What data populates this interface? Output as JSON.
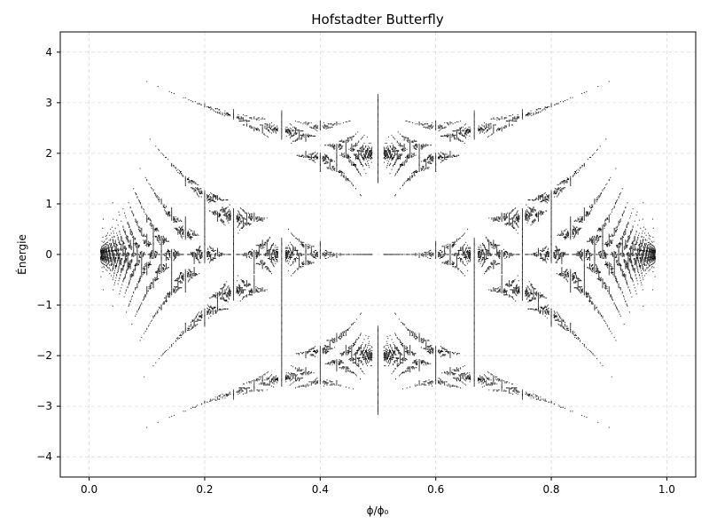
{
  "chart_data": {
    "type": "scatter",
    "title": "Hofstadter Butterfly",
    "xlabel": "ϕ/ϕ₀",
    "ylabel": "Énergie",
    "xlim": [
      -0.05,
      1.05
    ],
    "ylim": [
      -4.4,
      4.4
    ],
    "xticks": [
      0.0,
      0.2,
      0.4,
      0.6,
      0.8,
      1.0
    ],
    "xtick_labels": [
      "0.0",
      "0.2",
      "0.4",
      "0.6",
      "0.8",
      "1.0"
    ],
    "yticks": [
      -4,
      -3,
      -2,
      -1,
      0,
      1,
      2,
      3,
      4
    ],
    "ytick_labels": [
      "−4",
      "−3",
      "−2",
      "−1",
      "0",
      "1",
      "2",
      "3",
      "4"
    ],
    "grid": true,
    "marker_color": "#000000",
    "series": [
      {
        "generator": "harper_equation_rational_flux",
        "flux_denominators": [
          2,
          3,
          4,
          5,
          6,
          7,
          8,
          9,
          10,
          11,
          12,
          13,
          14,
          15,
          16,
          17,
          18,
          19,
          20,
          21,
          22,
          23,
          24,
          25,
          26,
          27,
          28,
          29,
          30,
          31,
          32,
          33,
          34,
          35,
          36,
          37,
          38,
          39,
          40,
          41,
          42,
          43,
          44,
          45,
          46,
          47,
          48,
          49,
          50
        ],
        "energy_bound": 4
      }
    ]
  }
}
